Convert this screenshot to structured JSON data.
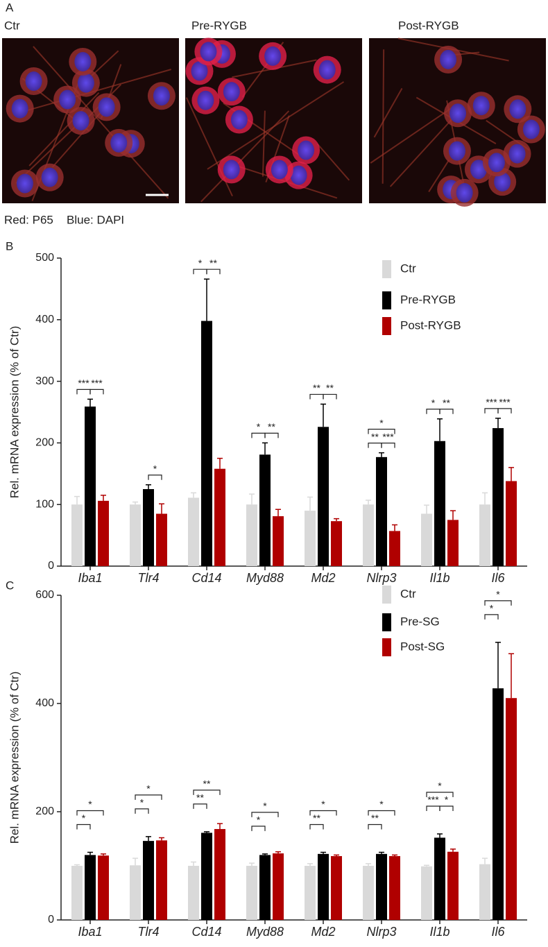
{
  "panel_a": {
    "label": "A",
    "images": [
      "Ctr",
      "Pre-RYGB",
      "Post-RYGB"
    ],
    "caption": [
      "Red: P65",
      "Blue: DAPI"
    ]
  },
  "chart_data": [
    {
      "type": "bar",
      "panel_label": "B",
      "ylabel": "Rel. mRNA expression (% of Ctr)",
      "categories": [
        "Iba1",
        "Tlr4",
        "Cd14",
        "Myd88",
        "Md2",
        "Nlrp3",
        "Il1b",
        "Il6"
      ],
      "series": [
        {
          "name": "Ctr",
          "color": "#d9d9d9",
          "values": [
            100,
            100,
            111,
            100,
            90,
            100,
            85,
            100
          ],
          "errors": [
            13,
            4,
            8,
            17,
            22,
            7,
            14,
            19
          ]
        },
        {
          "name": "Pre-RYGB",
          "color": "#000000",
          "values": [
            259,
            125,
            398,
            181,
            226,
            177,
            203,
            224
          ],
          "errors": [
            12,
            7,
            68,
            19,
            37,
            7,
            36,
            16
          ]
        },
        {
          "name": "Post-RYGB",
          "color": "#b00000",
          "values": [
            106,
            85,
            158,
            81,
            73,
            57,
            75,
            138
          ],
          "errors": [
            9,
            16,
            17,
            11,
            4,
            10,
            15,
            22
          ]
        }
      ],
      "ylim": [
        0,
        500
      ],
      "yticks": [
        0,
        100,
        200,
        300,
        400,
        500
      ],
      "legend": "upper right",
      "annotations": [
        {
          "text": "***",
          "category": "Iba1",
          "between": [
            "Ctr",
            "Pre-RYGB"
          ]
        },
        {
          "text": "***",
          "category": "Iba1",
          "between": [
            "Pre-RYGB",
            "Post-RYGB"
          ]
        },
        {
          "text": "*",
          "category": "Tlr4",
          "between": [
            "Pre-RYGB",
            "Post-RYGB"
          ]
        },
        {
          "text": "*",
          "category": "Cd14",
          "between": [
            "Ctr",
            "Pre-RYGB"
          ]
        },
        {
          "text": "**",
          "category": "Cd14",
          "between": [
            "Pre-RYGB",
            "Post-RYGB"
          ]
        },
        {
          "text": "*",
          "category": "Myd88",
          "between": [
            "Ctr",
            "Pre-RYGB"
          ]
        },
        {
          "text": "**",
          "category": "Myd88",
          "between": [
            "Pre-RYGB",
            "Post-RYGB"
          ]
        },
        {
          "text": "**",
          "category": "Md2",
          "between": [
            "Ctr",
            "Pre-RYGB"
          ]
        },
        {
          "text": "**",
          "category": "Md2",
          "between": [
            "Pre-RYGB",
            "Post-RYGB"
          ]
        },
        {
          "text": "**",
          "category": "Nlrp3",
          "between": [
            "Ctr",
            "Pre-RYGB"
          ]
        },
        {
          "text": "***",
          "category": "Nlrp3",
          "between": [
            "Pre-RYGB",
            "Post-RYGB"
          ]
        },
        {
          "text": "*",
          "category": "Nlrp3",
          "between": [
            "Ctr",
            "Post-RYGB"
          ]
        },
        {
          "text": "*",
          "category": "Il1b",
          "between": [
            "Ctr",
            "Pre-RYGB"
          ]
        },
        {
          "text": "**",
          "category": "Il1b",
          "between": [
            "Pre-RYGB",
            "Post-RYGB"
          ]
        },
        {
          "text": "***",
          "category": "Il6",
          "between": [
            "Ctr",
            "Pre-RYGB"
          ]
        },
        {
          "text": "***",
          "category": "Il6",
          "between": [
            "Pre-RYGB",
            "Post-RYGB"
          ]
        }
      ]
    },
    {
      "type": "bar",
      "panel_label": "C",
      "ylabel": "Rel. mRNA expression (% of Ctr)",
      "categories": [
        "Iba1",
        "Tlr4",
        "Cd14",
        "Myd88",
        "Md2",
        "Nlrp3",
        "Il1b",
        "Il6"
      ],
      "series": [
        {
          "name": "Ctr",
          "color": "#d9d9d9",
          "values": [
            100,
            101,
            100,
            100,
            100,
            100,
            99,
            103
          ],
          "errors": [
            2,
            13,
            7,
            5,
            4,
            4,
            2,
            11
          ]
        },
        {
          "name": "Pre-SG",
          "color": "#000000",
          "values": [
            120,
            146,
            161,
            120,
            122,
            122,
            152,
            428
          ],
          "errors": [
            5,
            8,
            2,
            2,
            3,
            3,
            7,
            85
          ]
        },
        {
          "name": "Post-SG",
          "color": "#b00000",
          "values": [
            119,
            147,
            168,
            123,
            118,
            118,
            126,
            410
          ],
          "errors": [
            3,
            5,
            10,
            3,
            2,
            2,
            5,
            82
          ]
        }
      ],
      "ylim": [
        0,
        600
      ],
      "yticks": [
        0,
        200,
        400,
        600
      ],
      "legend": "upper right",
      "annotations": [
        {
          "text": "*",
          "category": "Iba1",
          "between": [
            "Ctr",
            "Pre-SG"
          ]
        },
        {
          "text": "*",
          "category": "Iba1",
          "between": [
            "Ctr",
            "Post-SG"
          ]
        },
        {
          "text": "*",
          "category": "Tlr4",
          "between": [
            "Ctr",
            "Pre-SG"
          ]
        },
        {
          "text": "*",
          "category": "Tlr4",
          "between": [
            "Ctr",
            "Post-SG"
          ]
        },
        {
          "text": "**",
          "category": "Cd14",
          "between": [
            "Ctr",
            "Pre-SG"
          ]
        },
        {
          "text": "**",
          "category": "Cd14",
          "between": [
            "Ctr",
            "Post-SG"
          ]
        },
        {
          "text": "*",
          "category": "Myd88",
          "between": [
            "Ctr",
            "Pre-SG"
          ]
        },
        {
          "text": "*",
          "category": "Myd88",
          "between": [
            "Ctr",
            "Post-SG"
          ]
        },
        {
          "text": "**",
          "category": "Md2",
          "between": [
            "Ctr",
            "Pre-SG"
          ]
        },
        {
          "text": "*",
          "category": "Md2",
          "between": [
            "Ctr",
            "Post-SG"
          ]
        },
        {
          "text": "**",
          "category": "Nlrp3",
          "between": [
            "Ctr",
            "Pre-SG"
          ]
        },
        {
          "text": "*",
          "category": "Nlrp3",
          "between": [
            "Ctr",
            "Post-SG"
          ]
        },
        {
          "text": "***",
          "category": "Il1b",
          "between": [
            "Ctr",
            "Pre-SG"
          ]
        },
        {
          "text": "*",
          "category": "Il1b",
          "between": [
            "Pre-SG",
            "Post-SG"
          ]
        },
        {
          "text": "*",
          "category": "Il1b",
          "between": [
            "Ctr",
            "Post-SG"
          ]
        },
        {
          "text": "*",
          "category": "Il6",
          "between": [
            "Ctr",
            "Pre-SG"
          ]
        },
        {
          "text": "*",
          "category": "Il6",
          "between": [
            "Ctr",
            "Post-SG"
          ]
        }
      ]
    }
  ]
}
